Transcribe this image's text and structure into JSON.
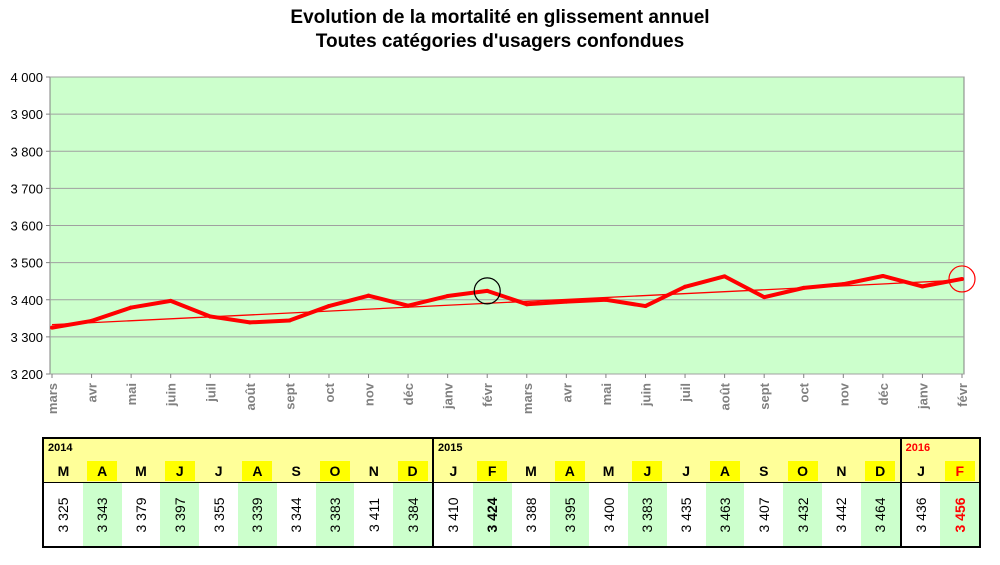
{
  "title_line1": "Evolution de la mortalité en glissement annuel",
  "title_line2": "Toutes catégories d'usagers confondues",
  "chart_data": {
    "type": "line",
    "title": "Evolution de la mortalité en glissement annuel / Toutes catégories d'usagers confondues",
    "categories": [
      "mars",
      "avr",
      "mai",
      "juin",
      "juil",
      "août",
      "sept",
      "oct",
      "nov",
      "déc",
      "janv",
      "févr",
      "mars",
      "avr",
      "mai",
      "juin",
      "juil",
      "août",
      "sept",
      "oct",
      "nov",
      "déc",
      "janv",
      "févr"
    ],
    "series": [
      {
        "values": [
          3325,
          3343,
          3379,
          3397,
          3355,
          3339,
          3344,
          3383,
          3411,
          3384,
          3410,
          3424,
          3388,
          3395,
          3400,
          3383,
          3435,
          3463,
          3407,
          3432,
          3442,
          3464,
          3436,
          3456
        ],
        "color": "#ff0000"
      }
    ],
    "trendline": {
      "start": 3333,
      "end": 3453,
      "color": "#ff0000"
    },
    "yticks": [
      "3 200",
      "3 300",
      "3 400",
      "3 500",
      "3 600",
      "3 700",
      "3 800",
      "3 900",
      "4 000"
    ],
    "ylim": [
      3200,
      4000
    ],
    "background_color": "#ccffcc",
    "markers": [
      {
        "index": 11,
        "color": "#000000"
      },
      {
        "index": 23,
        "color": "#ff0000"
      }
    ]
  },
  "table": {
    "blocks": [
      {
        "year": "2014",
        "year_color": "#000000",
        "cells": [
          {
            "m": "M",
            "v": "3 325",
            "shade": false
          },
          {
            "m": "A",
            "v": "3 343",
            "shade": true
          },
          {
            "m": "M",
            "v": "3 379",
            "shade": false
          },
          {
            "m": "J",
            "v": "3 397",
            "shade": true
          },
          {
            "m": "J",
            "v": "3 355",
            "shade": false
          },
          {
            "m": "A",
            "v": "3 339",
            "shade": true
          },
          {
            "m": "S",
            "v": "3 344",
            "shade": false
          },
          {
            "m": "O",
            "v": "3 383",
            "shade": true
          },
          {
            "m": "N",
            "v": "3 411",
            "shade": false
          },
          {
            "m": "D",
            "v": "3 384",
            "shade": true
          }
        ]
      },
      {
        "year": "2015",
        "year_color": "#000000",
        "cells": [
          {
            "m": "J",
            "v": "3 410",
            "shade": false
          },
          {
            "m": "F",
            "v": "3 424",
            "shade": true,
            "bold": true
          },
          {
            "m": "M",
            "v": "3 388",
            "shade": false
          },
          {
            "m": "A",
            "v": "3 395",
            "shade": true
          },
          {
            "m": "M",
            "v": "3 400",
            "shade": false
          },
          {
            "m": "J",
            "v": "3 383",
            "shade": true
          },
          {
            "m": "J",
            "v": "3 435",
            "shade": false
          },
          {
            "m": "A",
            "v": "3 463",
            "shade": true
          },
          {
            "m": "S",
            "v": "3 407",
            "shade": false
          },
          {
            "m": "O",
            "v": "3 432",
            "shade": true
          },
          {
            "m": "N",
            "v": "3 442",
            "shade": false
          },
          {
            "m": "D",
            "v": "3 464",
            "shade": true
          }
        ]
      },
      {
        "year": "2016",
        "year_color": "#ff0000",
        "cells": [
          {
            "m": "J",
            "v": "3 436",
            "shade": false
          },
          {
            "m": "F",
            "v": "3 456",
            "shade": true,
            "bold": true,
            "color": "#ff0000"
          }
        ]
      }
    ]
  }
}
